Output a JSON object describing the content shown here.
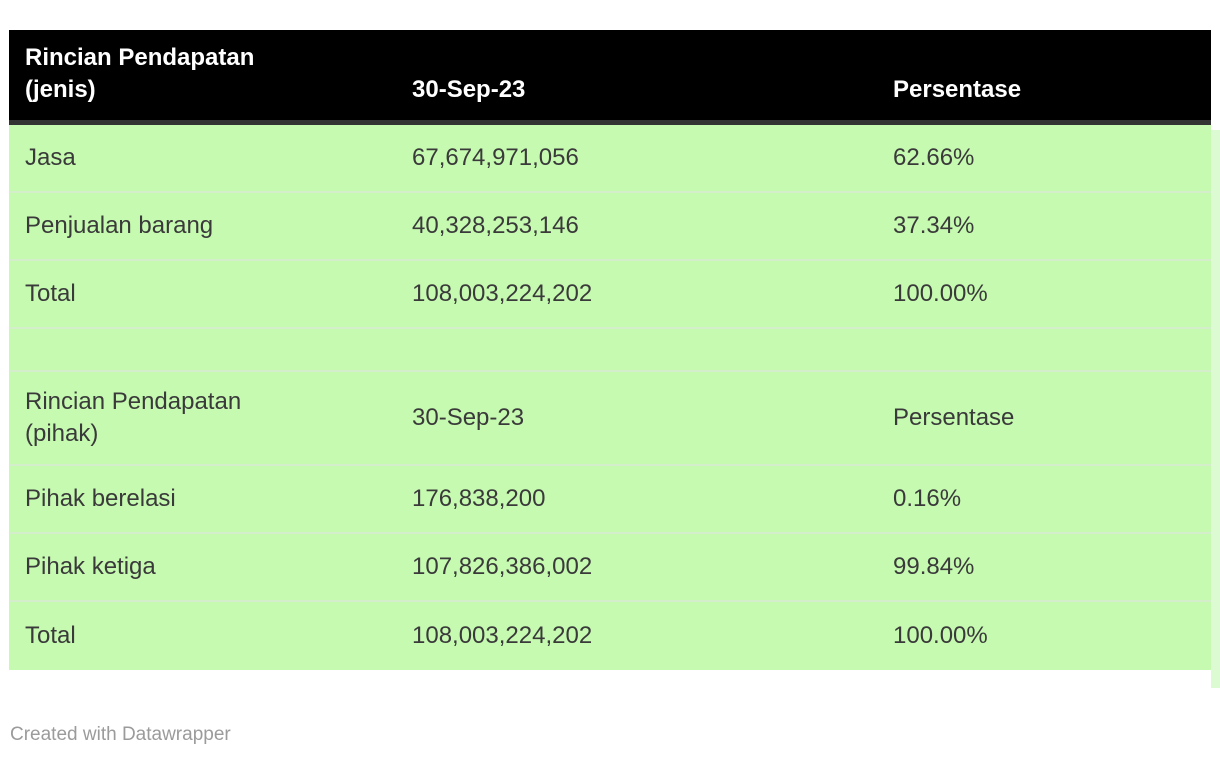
{
  "page": {
    "footer": "Created with Datawrapper"
  },
  "colors": {
    "header_bg": "#000000",
    "header_text": "#ffffff",
    "header_border": "#333333",
    "row_bg": "#c6fab1",
    "row_separator": "#d4eecb",
    "right_strip": "#ddfbd3",
    "body_text": "#3a3a3a",
    "footer_text": "#9b9b9b"
  },
  "table": {
    "sections": [
      {
        "header": {
          "label": "Rincian Pendapatan\n(jenis)",
          "date": "30-Sep-23",
          "pct": "Persentase"
        },
        "rows": [
          {
            "label": "Jasa",
            "value": "67,674,971,056",
            "pct": "62.66%"
          },
          {
            "label": "Penjualan barang",
            "value": "40,328,253,146",
            "pct": "37.34%"
          },
          {
            "label": "Total",
            "value": "108,003,224,202",
            "pct": "100.00%"
          }
        ]
      },
      {
        "header": {
          "label": "Rincian Pendapatan\n(pihak)",
          "date": "30-Sep-23",
          "pct": "Persentase"
        },
        "rows": [
          {
            "label": "Pihak berelasi",
            "value": "176,838,200",
            "pct": "0.16%"
          },
          {
            "label": "Pihak ketiga",
            "value": "107,826,386,002",
            "pct": "99.84%"
          },
          {
            "label": "Total",
            "value": "108,003,224,202",
            "pct": "100.00%"
          }
        ]
      }
    ]
  },
  "chart_data": [
    {
      "type": "table",
      "title": "Rincian Pendapatan (jenis)",
      "columns": [
        "Rincian Pendapatan (jenis)",
        "30-Sep-23",
        "Persentase"
      ],
      "rows": [
        [
          "Jasa",
          "67,674,971,056",
          "62.66%"
        ],
        [
          "Penjualan barang",
          "40,328,253,146",
          "37.34%"
        ],
        [
          "Total",
          "108,003,224,202",
          "100.00%"
        ]
      ]
    },
    {
      "type": "table",
      "title": "Rincian Pendapatan (pihak)",
      "columns": [
        "Rincian Pendapatan (pihak)",
        "30-Sep-23",
        "Persentase"
      ],
      "rows": [
        [
          "Pihak berelasi",
          "176,838,200",
          "0.16%"
        ],
        [
          "Pihak ketiga",
          "107,826,386,002",
          "99.84%"
        ],
        [
          "Total",
          "108,003,224,202",
          "100.00%"
        ]
      ]
    }
  ]
}
